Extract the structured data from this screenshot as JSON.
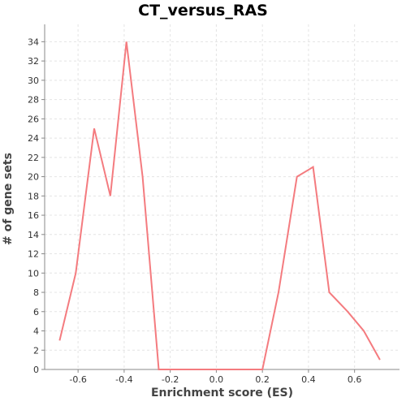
{
  "chart_data": {
    "type": "line",
    "title": "CT_versus_RAS",
    "xlabel": "Enrichment score (ES)",
    "ylabel": "# of gene sets",
    "xlim": [
      -0.745,
      0.795
    ],
    "ylim": [
      0,
      35.8
    ],
    "x_ticks": [
      "-0.6",
      "-0.4",
      "-0.2",
      "0.0",
      "0.2",
      "0.4",
      "0.6"
    ],
    "y_ticks": [
      "0",
      "2",
      "4",
      "6",
      "8",
      "10",
      "12",
      "14",
      "16",
      "18",
      "20",
      "22",
      "24",
      "26",
      "28",
      "30",
      "32",
      "34"
    ],
    "grid": true,
    "series": [
      {
        "color": "#f47b7f",
        "x": [
          -0.68,
          -0.61,
          -0.53,
          -0.46,
          -0.39,
          -0.32,
          -0.25,
          -0.18,
          -0.1,
          -0.03,
          0.05,
          0.12,
          0.2,
          0.27,
          0.35,
          0.42,
          0.49,
          0.57,
          0.64,
          0.71
        ],
        "y": [
          3,
          10,
          25,
          18,
          34,
          20,
          0,
          0,
          0,
          0,
          0,
          0,
          0,
          8,
          20,
          21,
          8,
          6,
          4,
          1
        ]
      }
    ]
  }
}
